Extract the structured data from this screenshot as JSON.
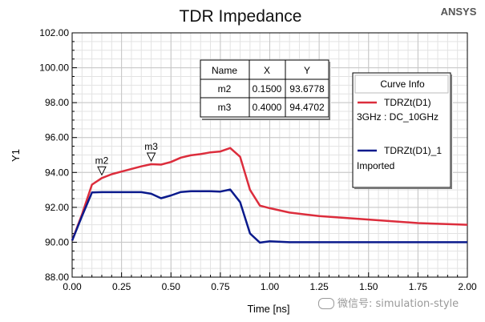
{
  "chart_data": {
    "type": "line",
    "title": "TDR Impedance",
    "brand": "ANSYS",
    "xlabel": "Time [ns]",
    "ylabel": "Y1",
    "xlim": [
      0,
      2
    ],
    "ylim": [
      88,
      102
    ],
    "x_ticks": [
      "0.00",
      "0.25",
      "0.50",
      "0.75",
      "1.00",
      "1.25",
      "1.50",
      "1.75",
      "2.00"
    ],
    "y_ticks": [
      "88.00",
      "90.00",
      "92.00",
      "94.00",
      "96.00",
      "98.00",
      "100.00",
      "102.00"
    ],
    "grid": true,
    "series": [
      {
        "name": "TDRZt(D1)",
        "description": "3GHz : DC_10GHz",
        "color": "#dc2d3c",
        "points": [
          [
            0,
            90.1
          ],
          [
            0.05,
            91.6
          ],
          [
            0.1,
            93.3
          ],
          [
            0.15,
            93.68
          ],
          [
            0.2,
            93.9
          ],
          [
            0.25,
            94.05
          ],
          [
            0.3,
            94.2
          ],
          [
            0.35,
            94.35
          ],
          [
            0.4,
            94.47
          ],
          [
            0.45,
            94.45
          ],
          [
            0.5,
            94.6
          ],
          [
            0.55,
            94.85
          ],
          [
            0.6,
            94.98
          ],
          [
            0.65,
            95.05
          ],
          [
            0.7,
            95.15
          ],
          [
            0.75,
            95.2
          ],
          [
            0.8,
            95.4
          ],
          [
            0.85,
            94.9
          ],
          [
            0.9,
            93.0
          ],
          [
            0.95,
            92.1
          ],
          [
            1.0,
            91.95
          ],
          [
            1.1,
            91.7
          ],
          [
            1.25,
            91.5
          ],
          [
            1.5,
            91.3
          ],
          [
            1.75,
            91.1
          ],
          [
            2.0,
            91.0
          ]
        ]
      },
      {
        "name": "TDRZt(D1)_1",
        "description": "Imported",
        "color": "#0a1a8c",
        "points": [
          [
            0,
            90.1
          ],
          [
            0.05,
            91.5
          ],
          [
            0.1,
            92.85
          ],
          [
            0.15,
            92.87
          ],
          [
            0.2,
            92.87
          ],
          [
            0.25,
            92.87
          ],
          [
            0.3,
            92.87
          ],
          [
            0.35,
            92.87
          ],
          [
            0.4,
            92.78
          ],
          [
            0.45,
            92.52
          ],
          [
            0.5,
            92.68
          ],
          [
            0.55,
            92.88
          ],
          [
            0.6,
            92.92
          ],
          [
            0.65,
            92.92
          ],
          [
            0.7,
            92.92
          ],
          [
            0.75,
            92.9
          ],
          [
            0.8,
            93.02
          ],
          [
            0.85,
            92.3
          ],
          [
            0.9,
            90.5
          ],
          [
            0.95,
            89.98
          ],
          [
            1.0,
            90.05
          ],
          [
            1.1,
            90.0
          ],
          [
            1.5,
            90.0
          ],
          [
            2.0,
            90.0
          ]
        ]
      }
    ],
    "markers": [
      {
        "name": "m2",
        "x": 0.15,
        "y": 93.6778,
        "x_text": "0.1500",
        "y_text": "93.6778"
      },
      {
        "name": "m3",
        "x": 0.4,
        "y": 94.4702,
        "x_text": "0.4000",
        "y_text": "94.4702"
      }
    ],
    "marker_table": {
      "headers": [
        "Name",
        "X",
        "Y"
      ]
    },
    "legend": {
      "title": "Curve Info",
      "position": "top-right"
    }
  },
  "watermark": {
    "text": "微信号: simulation-style"
  }
}
